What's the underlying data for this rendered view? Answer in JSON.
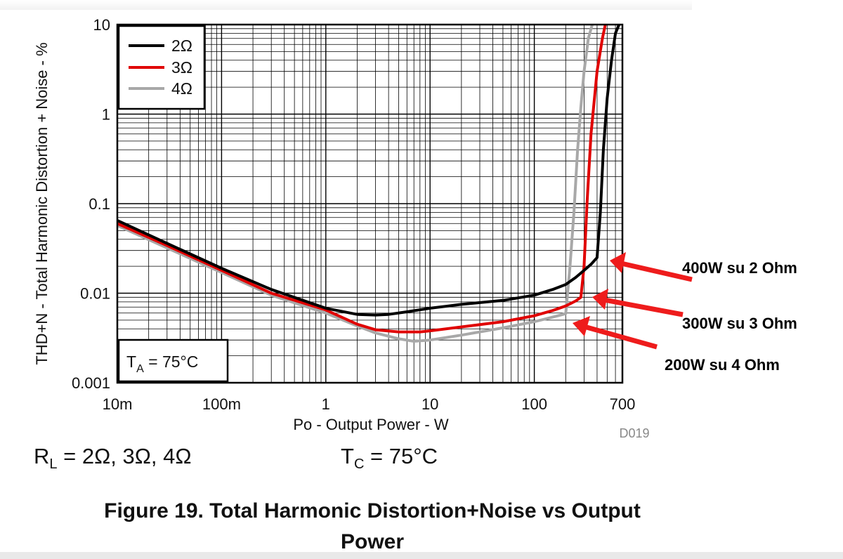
{
  "chart_data": {
    "type": "line",
    "x_scale": "log",
    "y_scale": "log",
    "xlim": [
      0.01,
      700
    ],
    "ylim": [
      0.001,
      10
    ],
    "xlabel": "Po - Output Power - W",
    "ylabel": "THD+N - Total Harmonic Distortion + Noise - %",
    "x_ticks": [
      {
        "value": 0.01,
        "label": "10m"
      },
      {
        "value": 0.1,
        "label": "100m"
      },
      {
        "value": 1,
        "label": "1"
      },
      {
        "value": 10,
        "label": "10"
      },
      {
        "value": 100,
        "label": "100"
      },
      {
        "value": 700,
        "label": "700"
      }
    ],
    "y_ticks": [
      {
        "value": 0.001,
        "label": "0.001"
      },
      {
        "value": 0.01,
        "label": "0.01"
      },
      {
        "value": 0.1,
        "label": "0.1"
      },
      {
        "value": 1,
        "label": "1"
      },
      {
        "value": 10,
        "label": "10"
      }
    ],
    "grid": true,
    "legend_position": "top-left",
    "series": [
      {
        "name": "2Ω",
        "color": "#000000",
        "x": [
          0.01,
          0.03,
          0.1,
          0.3,
          1,
          2,
          3,
          4,
          6,
          10,
          20,
          50,
          100,
          150,
          200,
          250,
          300,
          350,
          400,
          430,
          460,
          500,
          550,
          600,
          650
        ],
        "y": [
          0.065,
          0.036,
          0.019,
          0.011,
          0.0068,
          0.0058,
          0.0057,
          0.0058,
          0.0062,
          0.0068,
          0.0075,
          0.0083,
          0.0095,
          0.011,
          0.0125,
          0.015,
          0.018,
          0.021,
          0.025,
          0.08,
          0.4,
          1.5,
          4,
          8,
          10
        ]
      },
      {
        "name": "3Ω",
        "color": "#e00000",
        "x": [
          0.01,
          0.03,
          0.1,
          0.3,
          1,
          2,
          3,
          5,
          8,
          10,
          20,
          50,
          100,
          150,
          200,
          250,
          280,
          300,
          320,
          350,
          400,
          450,
          480
        ],
        "y": [
          0.06,
          0.034,
          0.018,
          0.01,
          0.0065,
          0.0045,
          0.0039,
          0.0037,
          0.0037,
          0.0038,
          0.0042,
          0.0048,
          0.0056,
          0.0064,
          0.0072,
          0.0082,
          0.009,
          0.02,
          0.1,
          0.6,
          3,
          7,
          10
        ]
      },
      {
        "name": "4Ω",
        "color": "#a8a8a8",
        "x": [
          0.01,
          0.03,
          0.1,
          0.3,
          1,
          2,
          3,
          5,
          7,
          10,
          20,
          50,
          100,
          150,
          200,
          220,
          240,
          260,
          280,
          300,
          330,
          360
        ],
        "y": [
          0.057,
          0.032,
          0.017,
          0.0095,
          0.006,
          0.0043,
          0.0036,
          0.0031,
          0.0029,
          0.003,
          0.0034,
          0.0041,
          0.0048,
          0.0054,
          0.0059,
          0.02,
          0.08,
          0.4,
          1.2,
          3,
          7,
          10
        ]
      }
    ],
    "annotations": {
      "ta": {
        "T": "T",
        "sub": "A",
        "rest": " = 75°C"
      },
      "code": "D019",
      "callouts": [
        {
          "text": "400W su 2 Ohm",
          "x": 400,
          "y": 0.025
        },
        {
          "text": "300W su 3 Ohm",
          "x": 300,
          "y": 0.0095
        },
        {
          "text": "200W su 4 Ohm",
          "x": 200,
          "y": 0.0055
        }
      ]
    }
  },
  "conditions": {
    "rl_main": "R",
    "rl_sub": "L",
    "rl_rest": " = 2Ω, 3Ω, 4Ω",
    "tc_main": "T",
    "tc_sub": "C",
    "tc_rest": " = 75°C"
  },
  "caption": {
    "line1": "Figure 19. Total Harmonic Distortion+Noise vs Output",
    "line2": "Power"
  }
}
